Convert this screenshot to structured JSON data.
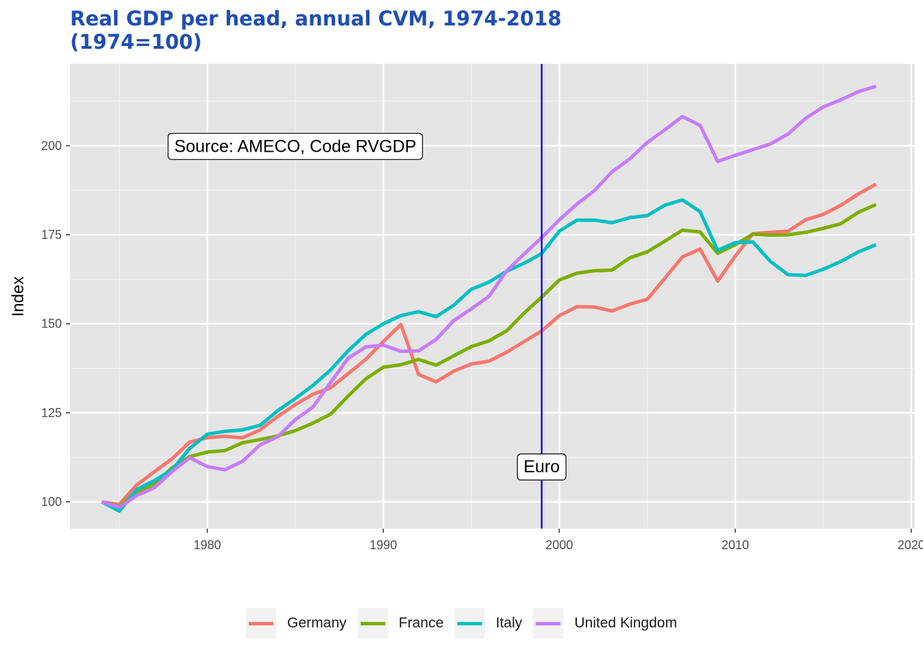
{
  "chart_data": {
    "type": "line",
    "title": "Real GDP per head, annual CVM, 1974-2018\n(1974=100)",
    "xlabel": "",
    "ylabel": "Index",
    "xlim": [
      1972.2,
      2020.2
    ],
    "ylim": [
      92.5,
      223
    ],
    "x_ticks": [
      1980,
      1990,
      2000,
      2010,
      2020
    ],
    "y_ticks": [
      100,
      125,
      150,
      175,
      200
    ],
    "grid": true,
    "legend_position": "bottom",
    "x": [
      1974,
      1975,
      1976,
      1977,
      1978,
      1979,
      1980,
      1981,
      1982,
      1983,
      1984,
      1985,
      1986,
      1987,
      1988,
      1989,
      1990,
      1991,
      1992,
      1993,
      1994,
      1995,
      1996,
      1997,
      1998,
      1999,
      2000,
      2001,
      2002,
      2003,
      2004,
      2005,
      2006,
      2007,
      2008,
      2009,
      2010,
      2011,
      2012,
      2013,
      2014,
      2015,
      2016,
      2017,
      2018
    ],
    "series": [
      {
        "name": "Germany",
        "color": "#F8766D",
        "values": [
          100,
          99.3,
          104.8,
          108.5,
          112.1,
          116.8,
          118,
          118.4,
          118,
          120.2,
          124,
          127.3,
          130.2,
          132,
          136,
          140,
          145,
          149.8,
          135.8,
          133.7,
          136.7,
          138.7,
          139.5,
          142,
          145,
          148,
          152.3,
          154.8,
          154.7,
          153.6,
          155.5,
          156.9,
          162.8,
          168.8,
          171,
          162,
          169,
          175.3,
          175.7,
          176,
          179.2,
          180.7,
          183.3,
          186.5,
          189.2
        ]
      },
      {
        "name": "France",
        "color": "#7CAE00",
        "values": [
          100,
          98.7,
          102.8,
          105,
          109.6,
          112.7,
          114,
          114.4,
          116.6,
          117.5,
          118.5,
          120,
          122.1,
          124.6,
          129.7,
          134.5,
          137.8,
          138.5,
          140,
          138.4,
          141,
          143.6,
          145.2,
          148,
          153,
          157.5,
          162.3,
          164.2,
          164.9,
          165.1,
          168.5,
          170.2,
          173.2,
          176.3,
          175.8,
          169.8,
          172.2,
          175.2,
          174.9,
          175,
          175.7,
          176.8,
          178.1,
          181.3,
          183.5
        ]
      },
      {
        "name": "Italy",
        "color": "#00BFC4",
        "values": [
          100,
          97.4,
          103.5,
          106,
          109,
          115,
          119,
          119.8,
          120.2,
          121.5,
          125.6,
          129,
          132.7,
          137,
          142.4,
          147,
          150,
          152.3,
          153.4,
          152,
          155.2,
          159.7,
          161.7,
          164.7,
          167,
          169.7,
          176,
          179.1,
          179.1,
          178.4,
          179.8,
          180.4,
          183.3,
          184.8,
          181.5,
          170.6,
          172.8,
          173,
          167.5,
          163.8,
          163.6,
          165.3,
          167.5,
          170.2,
          172.2
        ]
      },
      {
        "name": "United Kingdom",
        "color": "#C77CFF",
        "values": [
          100,
          98.5,
          101.8,
          104,
          108.5,
          112.4,
          109.9,
          109,
          111.4,
          116,
          118.3,
          123.1,
          126.6,
          133.5,
          140.3,
          143.5,
          144,
          142.3,
          142.4,
          145.6,
          150.9,
          154.2,
          157.7,
          164.8,
          169.6,
          174.2,
          179.2,
          183.6,
          187.4,
          192.7,
          196.3,
          200.9,
          204.5,
          208.2,
          205.7,
          195.6,
          197.3,
          198.9,
          200.5,
          203.3,
          207.7,
          210.9,
          212.9,
          215.2,
          216.7
        ]
      }
    ],
    "annotations": [
      {
        "text": "Source: AMECO, Code RVGDP",
        "x": 1985,
        "y": 200
      },
      {
        "text": "Euro",
        "x": 1999,
        "y": 110
      }
    ],
    "vline": {
      "x": 1999,
      "color": "#0000ff"
    }
  }
}
